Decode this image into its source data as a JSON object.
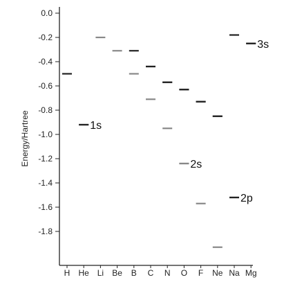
{
  "chart_data": {
    "type": "scatter",
    "title": "",
    "xlabel": "",
    "ylabel": "Energy/Hartree",
    "categories": [
      "H",
      "He",
      "Li",
      "Be",
      "B",
      "C",
      "N",
      "O",
      "F",
      "Ne",
      "Na",
      "Mg"
    ],
    "y_ticks": [
      "0.0",
      "-0.2",
      "-0.4",
      "-0.6",
      "-0.8",
      "-1.0",
      "-1.2",
      "-1.4",
      "-1.6",
      "-1.8"
    ],
    "ylim": [
      -1.95,
      0.08
    ],
    "grid": false,
    "legend_position": "inline",
    "series": [
      {
        "name": "1s",
        "color": "#222222",
        "points": [
          {
            "x": "H",
            "y": -0.5
          },
          {
            "x": "He",
            "y": -0.92
          },
          {
            "x": "C",
            "y": -0.44
          },
          {
            "x": "N",
            "y": -0.57
          },
          {
            "x": "O",
            "y": -0.63
          },
          {
            "x": "F",
            "y": -0.73
          },
          {
            "x": "Ne",
            "y": -0.85
          }
        ]
      },
      {
        "name": "2s",
        "color": "#888888",
        "points": [
          {
            "x": "Li",
            "y": -0.2
          },
          {
            "x": "Be",
            "y": -0.31
          },
          {
            "x": "B",
            "y": -0.5
          },
          {
            "x": "C",
            "y": -0.71
          },
          {
            "x": "N",
            "y": -0.95
          },
          {
            "x": "O",
            "y": -1.24
          },
          {
            "x": "F",
            "y": -1.57
          },
          {
            "x": "Ne",
            "y": -1.93
          }
        ]
      },
      {
        "name": "2p",
        "color": "#222222",
        "points": [
          {
            "x": "B",
            "y": -0.31
          },
          {
            "x": "C",
            "y": -0.44
          },
          {
            "x": "N",
            "y": -0.57
          },
          {
            "x": "O",
            "y": -0.63
          },
          {
            "x": "F",
            "y": -0.73
          },
          {
            "x": "Ne",
            "y": -0.85
          },
          {
            "x": "Na",
            "y": -1.52
          }
        ]
      },
      {
        "name": "3s",
        "color": "#222222",
        "points": [
          {
            "x": "Na",
            "y": -0.18
          },
          {
            "x": "Mg",
            "y": -0.25
          }
        ]
      }
    ],
    "legend": [
      {
        "series": "1s",
        "text": "1s",
        "x": "He",
        "y": -0.92
      },
      {
        "series": "2s",
        "text": "2s",
        "x": "O",
        "y": -1.24
      },
      {
        "series": "2p",
        "text": "2p",
        "x": "Na",
        "y": -1.52
      },
      {
        "series": "3s",
        "text": "3s",
        "x": "Mg",
        "y": -0.25
      }
    ]
  }
}
